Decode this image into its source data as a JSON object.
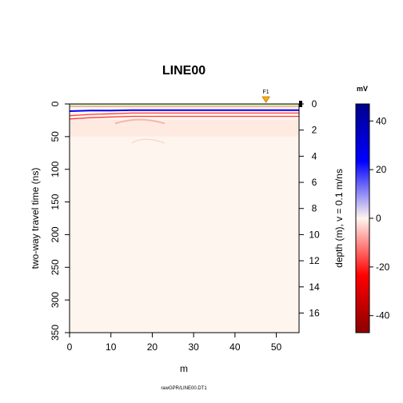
{
  "chart_data": {
    "type": "heatmap",
    "title": "LINE00",
    "xlabel": "m",
    "ylabel": "two-way travel time (ns)",
    "ylabel_right": "depth (m),   v = 0.1 m/ns",
    "colorbar_title": "mV",
    "footer": "rawGPR/LINE00.DT1",
    "marker_label": "F1",
    "marker_x": 47.5,
    "xlim": [
      0,
      55.5
    ],
    "ylim": [
      0,
      350
    ],
    "depth_lim": [
      0,
      17.5
    ],
    "x_ticks": [
      "0",
      "10",
      "20",
      "30",
      "40",
      "50"
    ],
    "y_ticks": [
      "0",
      "50",
      "100",
      "150",
      "200",
      "250",
      "300",
      "350"
    ],
    "depth_ticks": [
      "0",
      "2",
      "4",
      "6",
      "8",
      "10",
      "12",
      "14",
      "16"
    ],
    "colorbar_ticks": [
      "40",
      "20",
      "0",
      "-20",
      "-40"
    ],
    "colorbar_range": [
      -47,
      47
    ],
    "colors": {
      "max": "#00008b",
      "high": "#0000ff",
      "zero": "#fff5ef",
      "low": "#ff0000",
      "min": "#8b0000",
      "surface": "#d4e6a4",
      "marker": "#ffb200"
    },
    "series": [
      {
        "name": "reflector-1",
        "polarity": "positive",
        "x": [
          0,
          5,
          10,
          15,
          20,
          25,
          30,
          35,
          40,
          45,
          50,
          55.5
        ],
        "t": [
          11,
          10,
          10,
          9.5,
          9.5,
          9.5,
          9.5,
          9.5,
          9.5,
          9.5,
          9.5,
          9.5
        ]
      },
      {
        "name": "reflector-2",
        "polarity": "negative",
        "x": [
          0,
          5,
          10,
          15,
          20,
          25,
          30,
          35,
          40,
          45,
          50,
          55.5
        ],
        "t": [
          18,
          16,
          15,
          14,
          14,
          14,
          14,
          14,
          14,
          14,
          14,
          14
        ]
      },
      {
        "name": "reflector-3",
        "polarity": "negative",
        "x": [
          0,
          5,
          10,
          15,
          20,
          25,
          30,
          35,
          40,
          45,
          50,
          55.5
        ],
        "t": [
          23,
          21,
          20,
          19,
          19,
          19,
          19,
          19,
          19,
          19,
          19,
          19
        ]
      }
    ]
  }
}
